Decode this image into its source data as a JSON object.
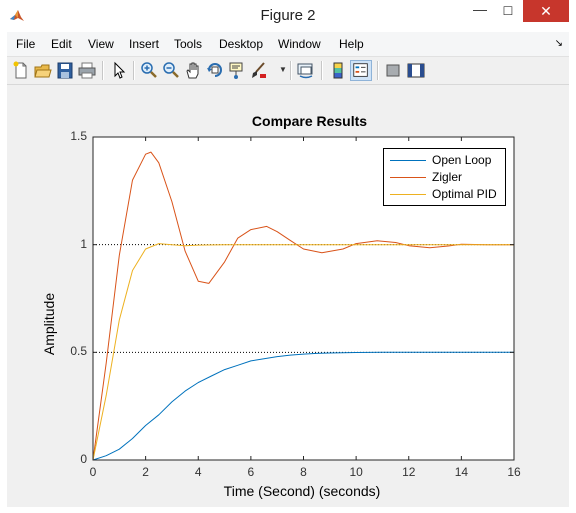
{
  "window": {
    "title": "Figure 2",
    "minimize": "—",
    "maximize": "☐",
    "close": "✕"
  },
  "menu": [
    "File",
    "Edit",
    "View",
    "Insert",
    "Tools",
    "Desktop",
    "Window",
    "Help"
  ],
  "menu_arrow": "↘",
  "toolbar": {
    "icons": [
      "new-figure-icon",
      "open-file-icon",
      "save-icon",
      "print-icon",
      "edit-plot-arrow-icon",
      "zoom-in-icon",
      "zoom-out-icon",
      "pan-hand-icon",
      "rotate-3d-icon",
      "data-cursor-icon",
      "brush-icon",
      "link-plot-icon",
      "colorbar-icon",
      "legend-icon",
      "hide-plot-tools-icon",
      "show-plot-tools-icon"
    ],
    "active": "legend-icon"
  },
  "chart_data": {
    "type": "line",
    "title": "Compare Results",
    "xlabel": "Time (Second) (seconds)",
    "ylabel": "Amplitude",
    "xlim": [
      0,
      16
    ],
    "ylim": [
      0,
      1.5
    ],
    "xticks": [
      "0",
      "2",
      "4",
      "6",
      "8",
      "10",
      "12",
      "14",
      "16"
    ],
    "yticks": [
      "0",
      "0.5",
      "1",
      "1.5"
    ],
    "legend_position": "top-right",
    "reference_lines": [
      0.5,
      1.0
    ],
    "series": [
      {
        "name": "Open Loop",
        "color": "#0072bd",
        "x": [
          0,
          0.5,
          1,
          1.5,
          2,
          2.5,
          3,
          3.5,
          4,
          4.5,
          5,
          5.5,
          6,
          6.5,
          7,
          7.5,
          8,
          8.5,
          9,
          10,
          11,
          12,
          13,
          14,
          15,
          16
        ],
        "y": [
          0,
          0.02,
          0.05,
          0.1,
          0.16,
          0.21,
          0.27,
          0.32,
          0.36,
          0.39,
          0.42,
          0.44,
          0.46,
          0.47,
          0.48,
          0.487,
          0.492,
          0.495,
          0.497,
          0.499,
          0.5,
          0.5,
          0.5,
          0.5,
          0.5,
          0.5
        ]
      },
      {
        "name": "Zigler",
        "color": "#d95319",
        "x": [
          0,
          0.5,
          1,
          1.5,
          2,
          2.2,
          2.5,
          3,
          3.5,
          4,
          4.4,
          5,
          5.5,
          6,
          6.6,
          7,
          7.5,
          8,
          8.7,
          9.5,
          10,
          10.8,
          11.5,
          12,
          12.8,
          13.5,
          14,
          15,
          16
        ],
        "y": [
          0,
          0.45,
          0.95,
          1.3,
          1.42,
          1.43,
          1.38,
          1.2,
          0.97,
          0.83,
          0.82,
          0.92,
          1.03,
          1.07,
          1.085,
          1.06,
          1.02,
          0.98,
          0.962,
          0.98,
          1.005,
          1.018,
          1.01,
          0.995,
          0.986,
          0.994,
          1.002,
          1.0,
          1.0
        ]
      },
      {
        "name": "Optimal PID",
        "color": "#edb120",
        "x": [
          0,
          0.5,
          1,
          1.5,
          2,
          2.5,
          3,
          3.5,
          4,
          5,
          6,
          8,
          10,
          12,
          14,
          16
        ],
        "y": [
          0,
          0.3,
          0.65,
          0.88,
          0.98,
          1.005,
          1.0,
          0.995,
          0.998,
          1.0,
          1.0,
          1.0,
          1.0,
          1.0,
          1.0,
          1.0
        ]
      }
    ]
  }
}
